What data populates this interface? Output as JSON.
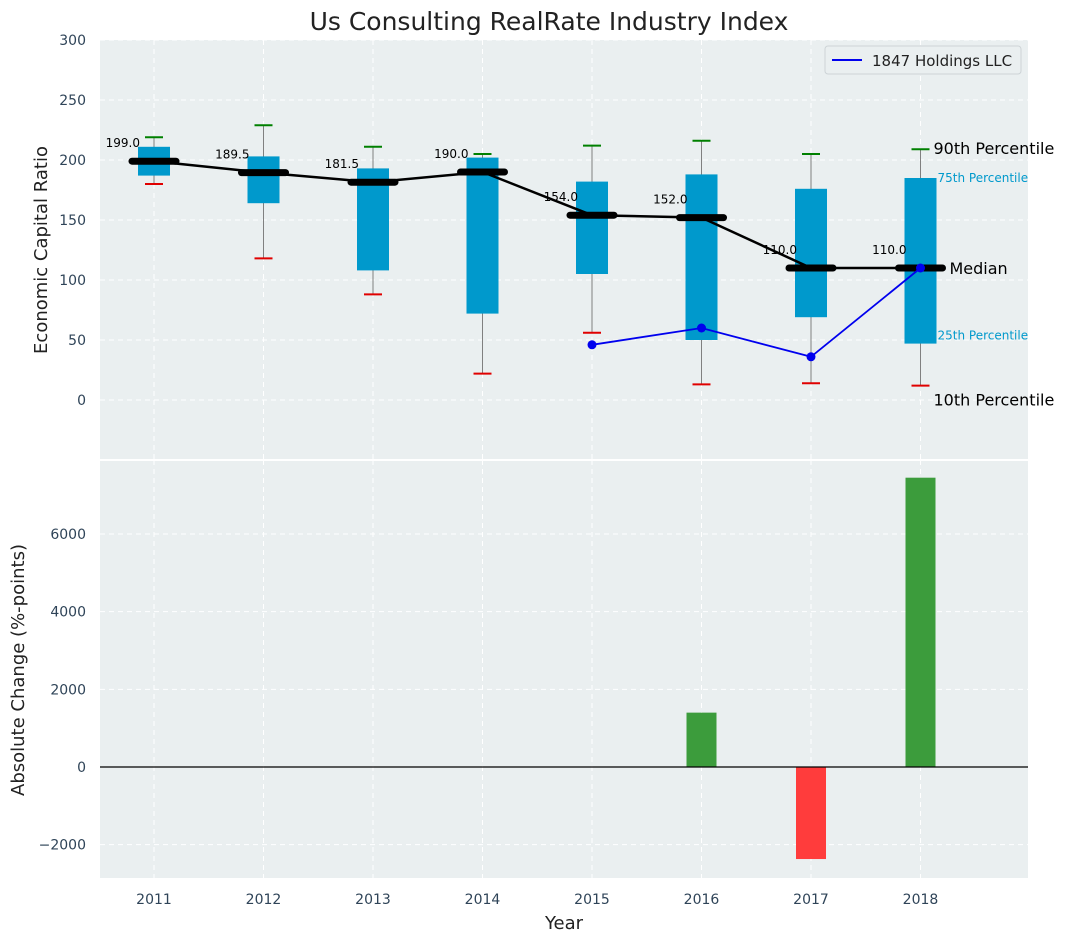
{
  "chart_data": [
    {
      "type": "box",
      "title": "Us Consulting RealRate Industry Index",
      "xlabel": "",
      "ylabel": "Economic Capital Ratio",
      "ylim": [
        -50,
        300
      ],
      "yticks": [
        0,
        50,
        100,
        150,
        200,
        250,
        300
      ],
      "grid": true,
      "legend_position": "top-right",
      "categories": [
        "2011",
        "2012",
        "2013",
        "2014",
        "2015",
        "2016",
        "2017",
        "2018"
      ],
      "p10": [
        180,
        118,
        88,
        22,
        56,
        13,
        14,
        12
      ],
      "p25": [
        187,
        164,
        108,
        72,
        105,
        50,
        69,
        47
      ],
      "median": [
        199.0,
        189.5,
        181.5,
        190.0,
        154.0,
        152.0,
        110.0,
        110.0
      ],
      "p75": [
        211,
        203,
        193,
        202,
        182,
        188,
        176,
        185
      ],
      "p90": [
        219,
        229,
        211,
        205,
        212,
        216,
        205,
        209
      ],
      "median_labels": [
        "199.0",
        "189.5",
        "181.5",
        "190.0",
        "154.0",
        "152.0",
        "110.0",
        "110.0"
      ],
      "series": [
        {
          "name": "1847 Holdings LLC",
          "color": "#0000ee",
          "x": [
            "2015",
            "2016",
            "2017",
            "2018"
          ],
          "values": [
            46,
            60,
            36,
            110
          ]
        }
      ],
      "annotations": {
        "p90": "90th Percentile",
        "p75": "75th Percentile",
        "median": "Median",
        "p25": "25th Percentile",
        "p10": "10th Percentile"
      }
    },
    {
      "type": "bar",
      "title": "",
      "xlabel": "Year",
      "ylabel": "Absolute Change (%-points)",
      "ylim": [
        -2850,
        7850
      ],
      "yticks": [
        -2000,
        0,
        2000,
        4000,
        6000
      ],
      "grid": true,
      "categories": [
        "2011",
        "2012",
        "2013",
        "2014",
        "2015",
        "2016",
        "2017",
        "2018"
      ],
      "values": [
        null,
        null,
        null,
        null,
        null,
        1400,
        -2370,
        7450
      ],
      "positive_color": "#3c9c3c",
      "negative_color": "#ff3c3c"
    }
  ],
  "colors": {
    "plot_bg": "#eaeff0",
    "box_fill": "#0099cc",
    "median_line": "#000000",
    "p90_cap": "#008000",
    "p10_cap": "#e00000",
    "tick_text": "#2f4458"
  }
}
